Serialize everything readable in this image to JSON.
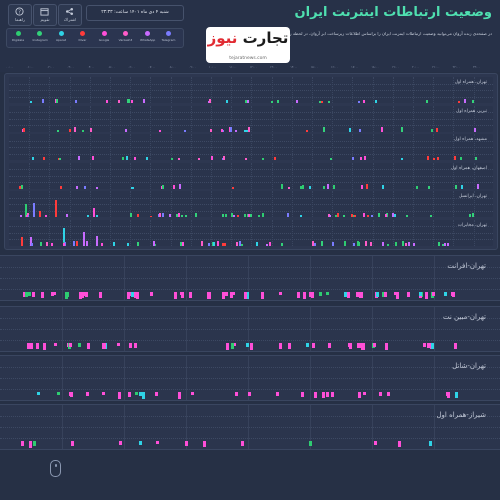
{
  "header": {
    "title": "وضعیت ارتباطات اینترنت ایران",
    "description": "در صفحه‌ی زنده آروان می‌توانید وضعیت ارتباطات اینترنت ایران را براساس اطلاعات زیرساخت ابر آروان، در لحظه رصد کنید.",
    "date": "شنبه ۴ دی ماه ۱۴۰۱ ساعت: ۲۳:۳۳",
    "nav": [
      {
        "label": "راهنما",
        "icon": "help-icon"
      },
      {
        "label": "تقویم",
        "icon": "calendar-icon"
      },
      {
        "label": "اشتراک",
        "icon": "share-icon"
      }
    ]
  },
  "legend": [
    {
      "label": "Digikala",
      "color": "#2ecc71"
    },
    {
      "label": "Instagram",
      "color": "#33d17a"
    },
    {
      "label": "Aparat",
      "color": "#2fd3e6"
    },
    {
      "label": "Divar",
      "color": "#ff3b3b"
    },
    {
      "label": "Google",
      "color": "#ff4fd8"
    },
    {
      "label": "Varzesh3",
      "color": "#ff5cc8"
    },
    {
      "label": "WhatsApp",
      "color": "#c86bff"
    },
    {
      "label": "Telegram",
      "color": "#7a7cff"
    }
  ],
  "logo": {
    "main_black": "تجارت",
    "main_red": "نیوز",
    "site": "tejaratnews.com"
  },
  "hours": [
    "۰۰:۰۰",
    "۰۱:۰۰",
    "۰۲:۰۰",
    "۰۳:۰۰",
    "۰۴:۰۰",
    "۰۵:۰۰",
    "۰۶:۰۰",
    "۰۷:۰۰",
    "۰۸:۰۰",
    "۰۹:۰۰",
    "۱۰:۰۰",
    "۱۱:۰۰",
    "۱۲:۰۰",
    "۱۳:۰۰",
    "۱۴:۰۰",
    "۱۵:۰۰",
    "۱۶:۰۰",
    "۱۷:۰۰",
    "۱۸:۰۰",
    "۱۹:۰۰",
    "۲۰:۰۰",
    "۲۱:۰۰",
    "۲۲:۰۰",
    "۲۳:۰۰"
  ],
  "small_rows": [
    {
      "label": "تهران، همراه اول"
    },
    {
      "label": "تبریز، همراه اول"
    },
    {
      "label": "مشهد، همراه اول"
    },
    {
      "label": "اصفهان، همراه اول"
    },
    {
      "label": "تهران، ایرانسل"
    },
    {
      "label": "تهران، مخابرات"
    }
  ],
  "big_rows": [
    {
      "label": "تهران-افرانت"
    },
    {
      "label": "تهران-مبین نت"
    },
    {
      "label": "تهران-شاتل"
    },
    {
      "label": "شیراز-همراه اول"
    }
  ]
}
